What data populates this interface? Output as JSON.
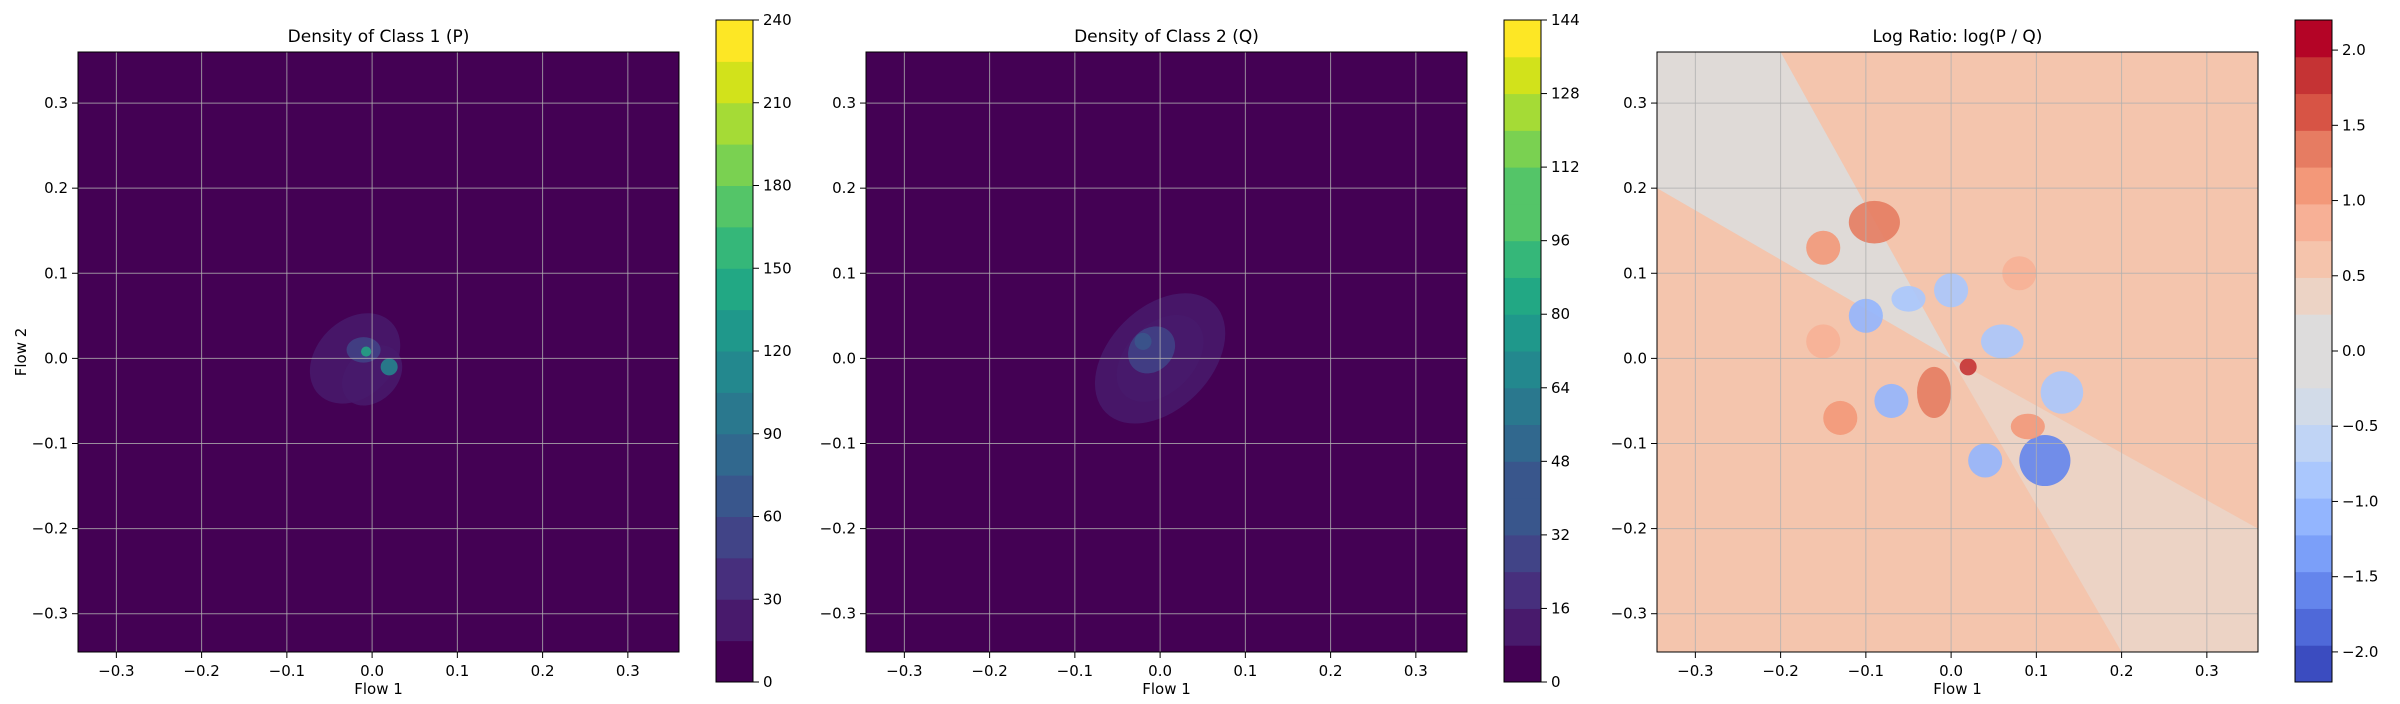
{
  "chart_data": [
    {
      "type": "heatmap",
      "title": "Density of Class 1 (P)",
      "xlabel": "Flow 1",
      "ylabel": "Flow 2",
      "xlim": [
        -0.345,
        0.36
      ],
      "ylim": [
        -0.345,
        0.36
      ],
      "x_ticks": [
        "−0.3",
        "−0.2",
        "−0.1",
        "0.0",
        "0.1",
        "0.2",
        "0.3"
      ],
      "y_ticks": [
        "0.3",
        "0.2",
        "0.1",
        "0.0",
        "−0.1",
        "−0.2",
        "−0.3"
      ],
      "grid": true,
      "colormap": "viridis",
      "colorbar": {
        "ticks": [
          "0",
          "30",
          "60",
          "90",
          "120",
          "150",
          "180",
          "210",
          "240"
        ],
        "range": [
          0,
          240
        ],
        "levels": 16
      },
      "background_color": "#440154",
      "density_blobs": [
        {
          "x": -0.02,
          "y": 0.0,
          "sx": 0.06,
          "sy": 0.045,
          "rot": -45,
          "level": 12
        },
        {
          "x": 0.0,
          "y": -0.02,
          "sx": 0.04,
          "sy": 0.03,
          "rot": -45,
          "level": 22
        },
        {
          "x": -0.01,
          "y": 0.01,
          "sx": 0.02,
          "sy": 0.015,
          "rot": 0,
          "level": 45
        },
        {
          "x": 0.02,
          "y": -0.01,
          "sx": 0.01,
          "sy": 0.01,
          "rot": 0,
          "level": 110
        },
        {
          "x": -0.007,
          "y": 0.008,
          "sx": 0.006,
          "sy": 0.006,
          "rot": 0,
          "level": 140
        }
      ]
    },
    {
      "type": "heatmap",
      "title": "Density of Class 2 (Q)",
      "xlabel": "Flow 1",
      "ylabel": "",
      "xlim": [
        -0.345,
        0.36
      ],
      "ylim": [
        -0.345,
        0.36
      ],
      "x_ticks": [
        "−0.3",
        "−0.2",
        "−0.1",
        "0.0",
        "0.1",
        "0.2",
        "0.3"
      ],
      "y_ticks": [
        "0.3",
        "0.2",
        "0.1",
        "0.0",
        "−0.1",
        "−0.2",
        "−0.3"
      ],
      "grid": true,
      "colormap": "viridis",
      "colorbar": {
        "ticks": [
          "0",
          "16",
          "32",
          "48",
          "64",
          "80",
          "96",
          "112",
          "128",
          "144"
        ],
        "range": [
          0,
          144
        ],
        "levels": 18
      },
      "background_color": "#440154",
      "density_blobs": [
        {
          "x": 0.0,
          "y": 0.0,
          "sx": 0.09,
          "sy": 0.06,
          "rot": -45,
          "level": 8
        },
        {
          "x": 0.0,
          "y": 0.0,
          "sx": 0.06,
          "sy": 0.04,
          "rot": -45,
          "level": 18
        },
        {
          "x": -0.01,
          "y": 0.01,
          "sx": 0.03,
          "sy": 0.025,
          "rot": -45,
          "level": 40
        },
        {
          "x": -0.02,
          "y": 0.02,
          "sx": 0.01,
          "sy": 0.01,
          "rot": 0,
          "level": 60
        }
      ]
    },
    {
      "type": "heatmap",
      "title": "Log Ratio: log(P / Q)",
      "xlabel": "Flow 1",
      "ylabel": "",
      "xlim": [
        -0.345,
        0.36
      ],
      "ylim": [
        -0.345,
        0.36
      ],
      "x_ticks": [
        "−0.3",
        "−0.2",
        "−0.1",
        "0.0",
        "0.1",
        "0.2",
        "0.3"
      ],
      "y_ticks": [
        "0.3",
        "0.2",
        "0.1",
        "0.0",
        "−0.1",
        "−0.2",
        "−0.3"
      ],
      "grid": true,
      "colormap": "coolwarm",
      "colorbar": {
        "ticks": [
          "2.0",
          "1.5",
          "1.0",
          "0.5",
          "0.0",
          "−0.5",
          "−1.0",
          "−1.5",
          "−2.0"
        ],
        "range": [
          -2.2,
          2.2
        ],
        "levels": 18
      },
      "background_color": "#f4c5ad",
      "ratio_blobs": [
        {
          "x": -0.09,
          "y": 0.16,
          "sx": 0.03,
          "sy": 0.025,
          "value": 1.5
        },
        {
          "x": -0.15,
          "y": 0.13,
          "sx": 0.02,
          "sy": 0.02,
          "value": 1.0
        },
        {
          "x": -0.1,
          "y": 0.05,
          "sx": 0.02,
          "sy": 0.02,
          "value": -1.0
        },
        {
          "x": -0.05,
          "y": 0.07,
          "sx": 0.02,
          "sy": 0.015,
          "value": -0.8
        },
        {
          "x": 0.0,
          "y": 0.08,
          "sx": 0.02,
          "sy": 0.02,
          "value": -0.9
        },
        {
          "x": -0.02,
          "y": -0.04,
          "sx": 0.02,
          "sy": 0.03,
          "value": 1.5
        },
        {
          "x": 0.02,
          "y": -0.01,
          "sx": 0.01,
          "sy": 0.01,
          "value": 2.0
        },
        {
          "x": -0.07,
          "y": -0.05,
          "sx": 0.02,
          "sy": 0.02,
          "value": -1.2
        },
        {
          "x": 0.11,
          "y": -0.12,
          "sx": 0.03,
          "sy": 0.03,
          "value": -1.6
        },
        {
          "x": 0.04,
          "y": -0.12,
          "sx": 0.02,
          "sy": 0.02,
          "value": -1.0
        },
        {
          "x": 0.13,
          "y": -0.04,
          "sx": 0.025,
          "sy": 0.025,
          "value": -0.8
        },
        {
          "x": 0.09,
          "y": -0.08,
          "sx": 0.02,
          "sy": 0.015,
          "value": 1.2
        },
        {
          "x": -0.13,
          "y": -0.07,
          "sx": 0.02,
          "sy": 0.02,
          "value": 1.0
        },
        {
          "x": -0.15,
          "y": 0.02,
          "sx": 0.02,
          "sy": 0.02,
          "value": 0.8
        },
        {
          "x": 0.06,
          "y": 0.02,
          "sx": 0.025,
          "sy": 0.02,
          "value": -0.7
        },
        {
          "x": 0.08,
          "y": 0.1,
          "sx": 0.02,
          "sy": 0.02,
          "value": 0.9
        }
      ]
    }
  ]
}
